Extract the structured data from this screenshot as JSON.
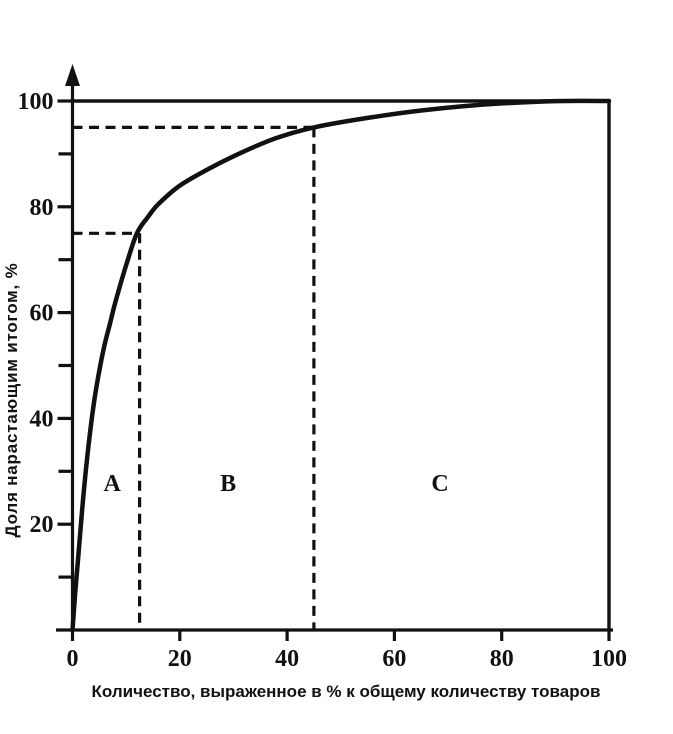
{
  "figure": {
    "background": "#ffffff",
    "ink_color": "#111111"
  },
  "chart_data": {
    "type": "line",
    "title": "",
    "xlabel": "Количество, выраженное в % к общему количеству товаров",
    "ylabel": "Доля нарастающим итогом, %",
    "xlim": [
      0,
      100
    ],
    "ylim": [
      0,
      100
    ],
    "grid": false,
    "legend": "none",
    "x_ticks": [
      0,
      20,
      40,
      60,
      80,
      100
    ],
    "y_ticks_labeled": [
      20,
      40,
      60,
      80,
      100
    ],
    "y_ticks_minor": [
      10,
      30,
      50,
      70,
      90
    ],
    "series": [
      {
        "name": "cumulative-share-curve",
        "points": [
          [
            0,
            0
          ],
          [
            0.5,
            7
          ],
          [
            1,
            13
          ],
          [
            1.5,
            19
          ],
          [
            2,
            25
          ],
          [
            3,
            35
          ],
          [
            4,
            43
          ],
          [
            5,
            49
          ],
          [
            6,
            54
          ],
          [
            7,
            58
          ],
          [
            8,
            62
          ],
          [
            10,
            69
          ],
          [
            12,
            75
          ],
          [
            14,
            78
          ],
          [
            16,
            80.5
          ],
          [
            20,
            84
          ],
          [
            26,
            87.5
          ],
          [
            32,
            90.5
          ],
          [
            38,
            93
          ],
          [
            45,
            95
          ],
          [
            55,
            96.8
          ],
          [
            65,
            98.2
          ],
          [
            75,
            99.2
          ],
          [
            85,
            99.8
          ],
          [
            92,
            100
          ],
          [
            100,
            100
          ]
        ]
      }
    ],
    "boundary_lines": {
      "top_y": 100,
      "right_x": 100
    },
    "guides": [
      {
        "x": 12.5,
        "y": 75
      },
      {
        "x": 45,
        "y": 95
      }
    ],
    "zone_labels": [
      {
        "label": "A",
        "x": 7.4,
        "y": 27.8
      },
      {
        "label": "B",
        "x": 29.0,
        "y": 27.8
      },
      {
        "label": "C",
        "x": 68.5,
        "y": 27.8
      }
    ]
  }
}
